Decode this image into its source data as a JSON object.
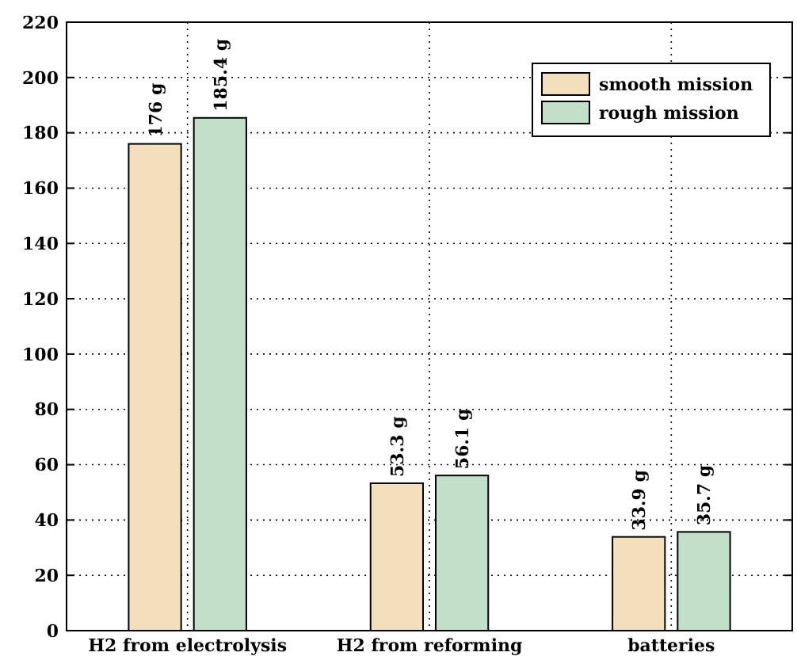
{
  "chart_data": {
    "type": "bar",
    "categories": [
      "H2 from electrolysis",
      "H2 from reforming",
      "batteries"
    ],
    "series": [
      {
        "name": "smooth mission",
        "color": "#f3dfbb",
        "values": [
          176,
          53.3,
          33.9
        ],
        "value_labels": [
          "176 g",
          "53.3 g",
          "33.9 g"
        ]
      },
      {
        "name": "rough mission",
        "color": "#c2e0c9",
        "values": [
          185.4,
          56.1,
          35.7
        ],
        "value_labels": [
          "185.4 g",
          "56.1 g",
          "35.7 g"
        ]
      }
    ],
    "ylim": [
      0,
      220
    ],
    "yticks": [
      0,
      20,
      40,
      60,
      80,
      100,
      120,
      140,
      160,
      180,
      200,
      220
    ],
    "grid": true,
    "legend": "top right"
  }
}
